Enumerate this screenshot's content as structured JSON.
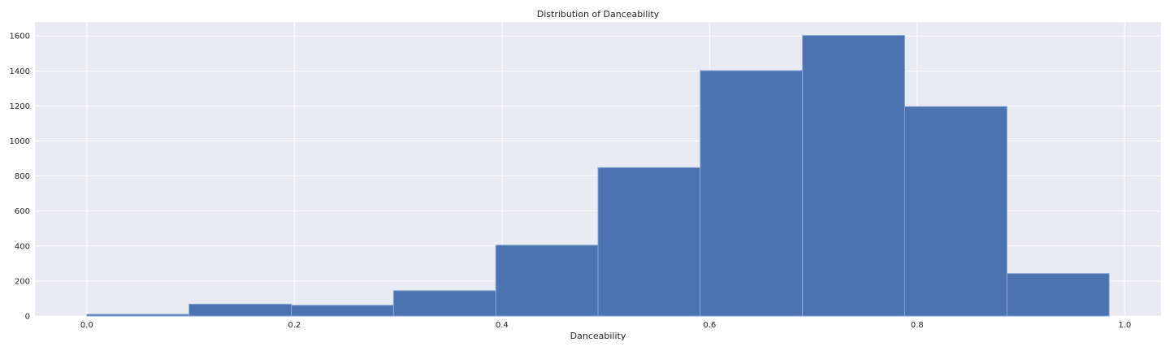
{
  "chart_data": {
    "type": "bar",
    "title": "Distribution of Danceability",
    "xlabel": "Danceability",
    "ylabel": "",
    "xlim": [
      -0.05,
      1.035
    ],
    "ylim": [
      0,
      1680
    ],
    "xticks": [
      0.0,
      0.2,
      0.4,
      0.6,
      0.8,
      1.0
    ],
    "xtick_labels": [
      "0.0",
      "0.2",
      "0.4",
      "0.6",
      "0.8",
      "1.0"
    ],
    "yticks": [
      0,
      200,
      400,
      600,
      800,
      1000,
      1200,
      1400,
      1600
    ],
    "ytick_labels": [
      "0",
      "200",
      "400",
      "600",
      "800",
      "1000",
      "1200",
      "1400",
      "1600"
    ],
    "bin_edges": [
      0.0,
      0.0985,
      0.197,
      0.2955,
      0.394,
      0.4925,
      0.591,
      0.6895,
      0.788,
      0.8865,
      0.985
    ],
    "values": [
      10,
      68,
      62,
      145,
      405,
      848,
      1402,
      1603,
      1197,
      243
    ],
    "grid": true,
    "colors": {
      "bar_fill": "#4c72b0",
      "bar_edge": "#8aa6d4",
      "plot_background": "#eaeaf2",
      "grid": "#ffffff"
    }
  }
}
